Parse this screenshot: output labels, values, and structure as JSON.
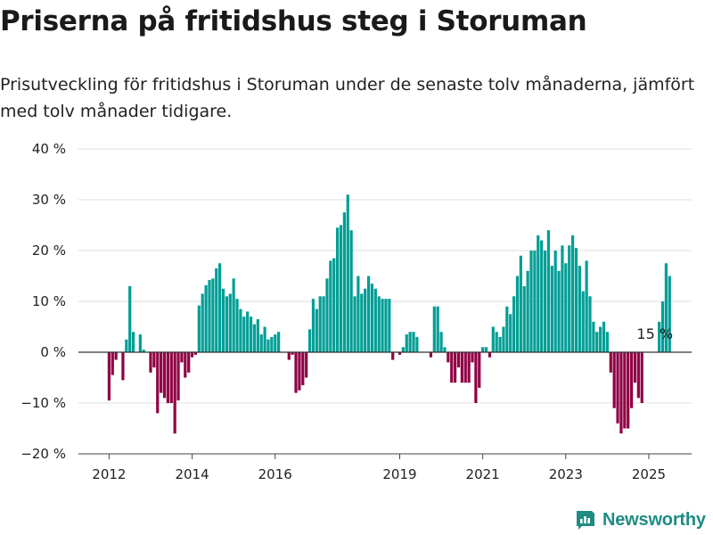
{
  "header": {
    "title": "Priserna på fritidshus steg i Storuman",
    "subtitle": "Prisutveckling för fritidshus i Storuman under de senaste tolv månaderna, jämfört med tolv månader tidigare."
  },
  "brand": {
    "name": "Newsworthy",
    "icon": "newsworthy-logo-icon"
  },
  "colors": {
    "positive": "#009e95",
    "negative": "#8f0044",
    "zero_line": "#333333",
    "grid": "#dddddd",
    "brand": "#1e8c83"
  },
  "chart_data": {
    "type": "bar",
    "unit": "%",
    "ylim": [
      -20,
      40
    ],
    "yticks": [
      -20,
      -10,
      0,
      10,
      20,
      30,
      40
    ],
    "ytick_labels": [
      "−20 %",
      "−10 %",
      "0 %",
      "10 %",
      "20 %",
      "30 %",
      "40 %"
    ],
    "xticks": [
      {
        "label": "2012",
        "x": "2012-01"
      },
      {
        "label": "2014",
        "x": "2014-01"
      },
      {
        "label": "2016",
        "x": "2016-01"
      },
      {
        "label": "2019",
        "x": "2019-01"
      },
      {
        "label": "2021",
        "x": "2021-01"
      },
      {
        "label": "2023",
        "x": "2023-01"
      },
      {
        "label": "2025",
        "x": "2025-01"
      }
    ],
    "grid": true,
    "annotation": {
      "x": "2025-03",
      "text": "15 %"
    },
    "series": [
      {
        "start": "2012-01",
        "values": [
          -9.5,
          -4.5,
          -1.5,
          null,
          -5.5,
          2.5,
          13,
          4,
          null,
          3.5,
          0.5,
          null,
          -4,
          -3,
          -12,
          -8,
          -9,
          -10,
          -10,
          -16,
          -9.5,
          -2,
          -5,
          -4,
          -1,
          -0.5,
          9.2,
          11.5,
          13.2,
          14.2,
          14.5,
          16.5,
          17.5,
          12.5,
          11,
          11.5,
          14.5,
          10.5,
          8.5,
          7,
          8,
          7,
          5.5,
          6.5,
          3.5,
          5,
          2.5,
          3,
          3.5,
          4,
          null,
          null,
          -1.5,
          -0.5,
          -8,
          -7.5,
          -6.5,
          -5,
          4.5,
          10.5,
          8.5,
          11,
          11,
          14.5,
          18,
          18.5,
          24.5,
          25,
          27.5,
          31,
          24,
          11,
          15,
          11.5,
          12.5,
          15,
          13.5,
          12.5,
          11,
          10.5,
          10.5,
          10.5,
          -1.5,
          null,
          -0.5,
          1,
          3.5,
          4,
          4,
          3,
          null,
          null,
          null,
          -1,
          9,
          9,
          4,
          1,
          -2,
          -6,
          -6,
          -3,
          -6,
          -6,
          -6,
          -2,
          -10,
          -7,
          1,
          1,
          -1,
          5,
          4,
          3,
          5,
          9,
          7.5,
          11,
          15,
          19,
          13,
          16,
          20,
          20,
          23,
          22,
          20,
          24,
          17,
          20,
          16,
          21,
          17.5,
          21,
          23,
          20.5,
          17,
          12,
          18,
          11,
          6,
          4,
          5,
          6,
          4,
          -4,
          -11,
          -14,
          -16,
          -15,
          -15,
          -11,
          -6,
          -9,
          -10,
          null,
          null,
          null,
          null,
          6,
          10,
          17.5,
          15
        ]
      }
    ]
  }
}
